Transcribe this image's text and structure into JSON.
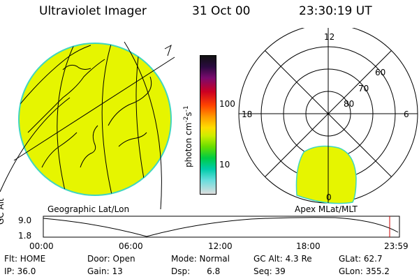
{
  "header": {
    "title": "Ultraviolet Imager",
    "date": "31 Oct 00",
    "time": "23:30:19 UT"
  },
  "left_panel": {
    "label": "Geographic Lat/Lon"
  },
  "right_panel": {
    "label": "Apex MLat/MLT",
    "mlt_labels": {
      "top": "12",
      "left": "18",
      "right": "6",
      "bottom": "0"
    },
    "lat_labels": [
      "60",
      "70",
      "80"
    ]
  },
  "colorbar": {
    "unit_label": "photon cm",
    "unit_sup1": "-2",
    "unit_s": "s",
    "unit_sup2": "-1",
    "ticks": [
      "100",
      "10"
    ]
  },
  "altitude_plot": {
    "ylabel": "GC Alt",
    "yticks": [
      "9.0",
      "1.8"
    ],
    "xticks": [
      "00:00",
      "06:00",
      "12:00",
      "18:00",
      "23:59"
    ]
  },
  "status": {
    "flt": "Flt: HOME",
    "ip": "IP: 36.0",
    "door": "Door: Open",
    "gain": "Gain: 13",
    "mode": "Mode: Normal",
    "dsp_label": "Dsp:",
    "dsp_value": "6.8",
    "gcalt": "GC Alt: 4.3 Re",
    "seq": "Seq: 39",
    "glat": "GLat: 62.7",
    "glon": "GLon: 355.2"
  },
  "colors": {
    "aurora_fill": "#e6f500",
    "disk_edge": "#3fd6c0",
    "marker": "#cc0000"
  }
}
